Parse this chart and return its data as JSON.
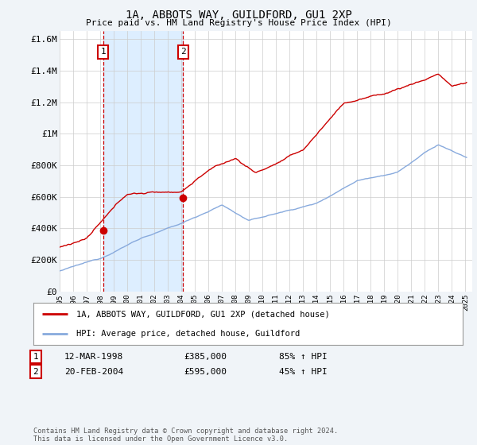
{
  "title": "1A, ABBOTS WAY, GUILDFORD, GU1 2XP",
  "subtitle": "Price paid vs. HM Land Registry's House Price Index (HPI)",
  "ylabel_ticks": [
    "£0",
    "£200K",
    "£400K",
    "£600K",
    "£800K",
    "£1M",
    "£1.2M",
    "£1.4M",
    "£1.6M"
  ],
  "ytick_values": [
    0,
    200000,
    400000,
    600000,
    800000,
    1000000,
    1200000,
    1400000,
    1600000
  ],
  "ylim": [
    0,
    1650000
  ],
  "xlim_start": 1995.0,
  "xlim_end": 2025.5,
  "xtick_years": [
    1995,
    1996,
    1997,
    1998,
    1999,
    2000,
    2001,
    2002,
    2003,
    2004,
    2005,
    2006,
    2007,
    2008,
    2009,
    2010,
    2011,
    2012,
    2013,
    2014,
    2015,
    2016,
    2017,
    2018,
    2019,
    2020,
    2021,
    2022,
    2023,
    2024,
    2025
  ],
  "sale1_x": 1998.21,
  "sale1_y": 385000,
  "sale1_label": "1",
  "sale2_x": 2004.13,
  "sale2_y": 595000,
  "sale2_label": "2",
  "marker_color": "#cc0000",
  "hpi_color": "#88aadd",
  "price_color": "#cc0000",
  "shade_color": "#ddeeff",
  "legend_label_price": "1A, ABBOTS WAY, GUILDFORD, GU1 2XP (detached house)",
  "legend_label_hpi": "HPI: Average price, detached house, Guildford",
  "table_row1": [
    "1",
    "12-MAR-1998",
    "£385,000",
    "85% ↑ HPI"
  ],
  "table_row2": [
    "2",
    "20-FEB-2004",
    "£595,000",
    "45% ↑ HPI"
  ],
  "footnote": "Contains HM Land Registry data © Crown copyright and database right 2024.\nThis data is licensed under the Open Government Licence v3.0.",
  "background_color": "#f0f4f8",
  "plot_bg_color": "#ffffff",
  "grid_color": "#cccccc"
}
